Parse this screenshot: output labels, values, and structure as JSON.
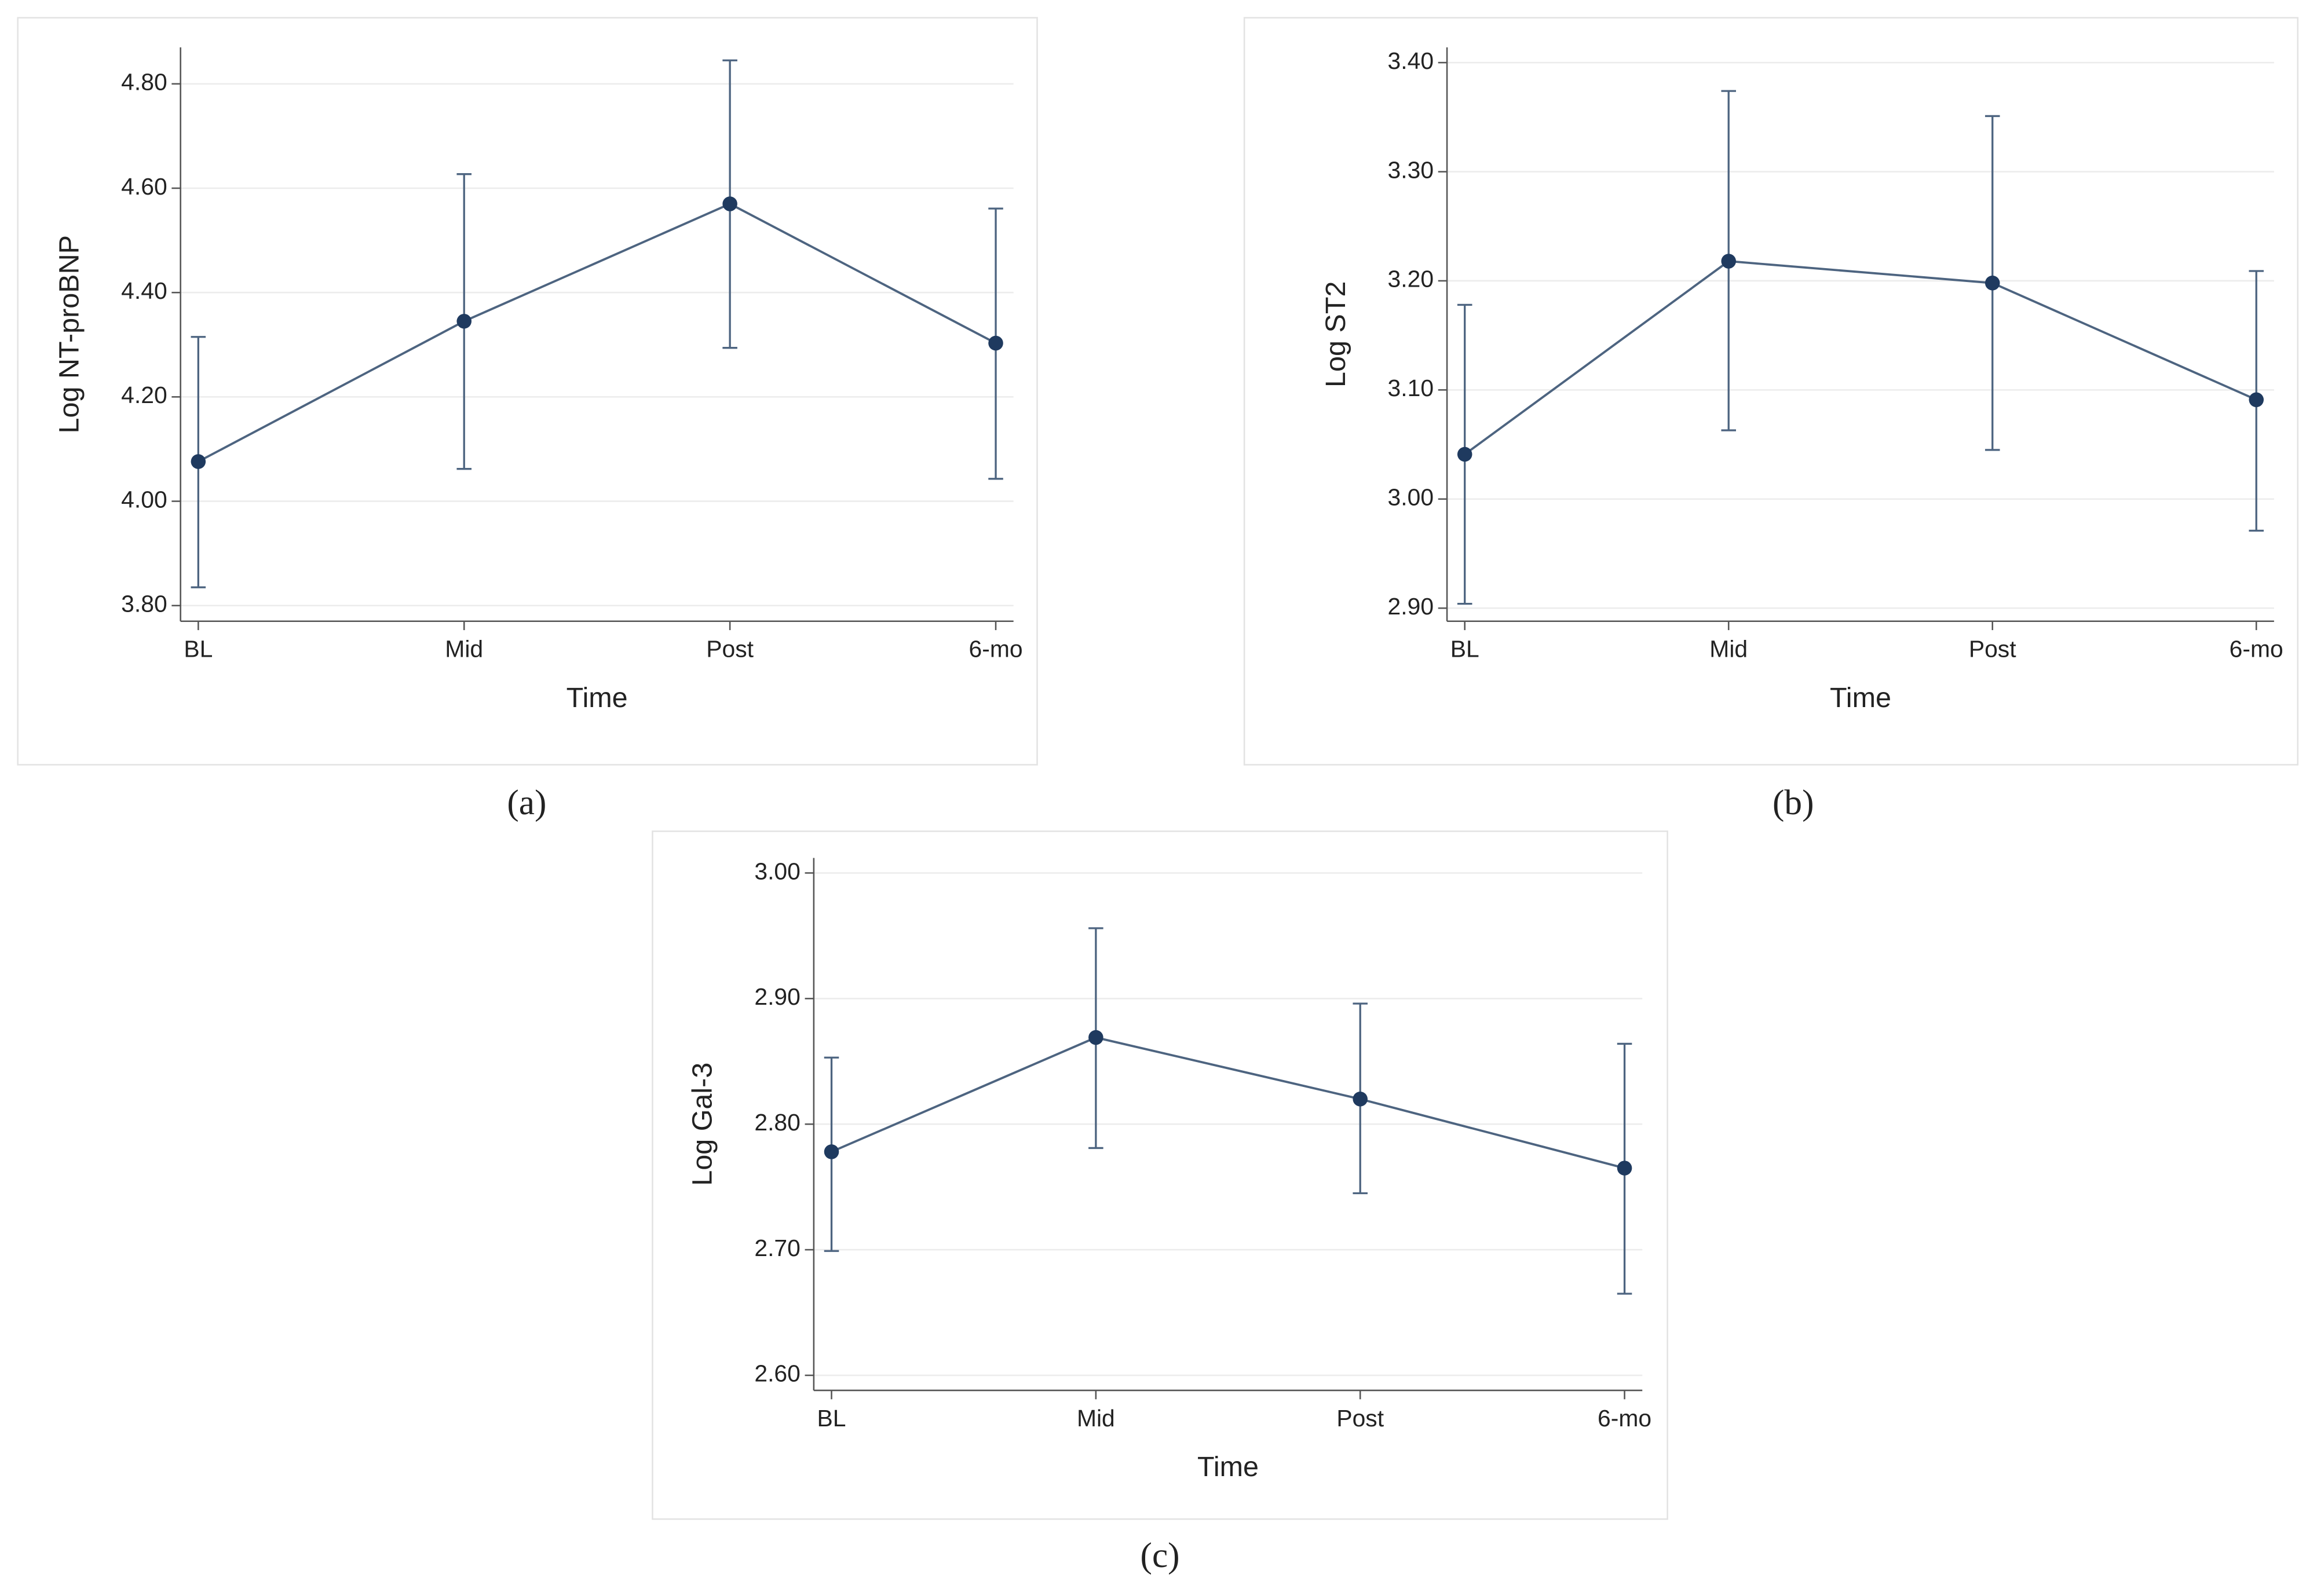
{
  "chart_data": [
    {
      "type": "line",
      "panel_label": "(a)",
      "xlabel": "Time",
      "ylabel": "Log NT-proBNP",
      "categories": [
        "BL",
        "Mid",
        "Post",
        "6-mo"
      ],
      "series": [
        {
          "color": "#4d6480",
          "marker_color": "#1f3a5f",
          "values": [
            4.076,
            4.345,
            4.57,
            4.303
          ],
          "ci_lower": [
            3.835,
            4.062,
            4.294,
            4.043
          ],
          "ci_upper": [
            4.315,
            4.627,
            4.845,
            4.561
          ]
        }
      ],
      "ylim": [
        3.77,
        4.87
      ],
      "yticks": [
        {
          "value": 3.8,
          "label": "3.80"
        },
        {
          "value": 4.0,
          "label": "4.00"
        },
        {
          "value": 4.2,
          "label": "4.20"
        },
        {
          "value": 4.4,
          "label": "4.40"
        },
        {
          "value": 4.6,
          "label": "4.60"
        },
        {
          "value": 4.8,
          "label": "4.80"
        }
      ],
      "grid": true
    },
    {
      "type": "line",
      "panel_label": "(b)",
      "xlabel": "Time",
      "ylabel": "Log ST2",
      "categories": [
        "BL",
        "Mid",
        "Post",
        "6-mo"
      ],
      "series": [
        {
          "color": "#4d6480",
          "marker_color": "#1f3a5f",
          "values": [
            3.041,
            3.218,
            3.198,
            3.091
          ],
          "ci_lower": [
            2.904,
            3.063,
            3.045,
            2.971
          ],
          "ci_upper": [
            3.178,
            3.374,
            3.351,
            3.209
          ]
        }
      ],
      "ylim": [
        2.888,
        3.414
      ],
      "yticks": [
        {
          "value": 2.9,
          "label": "2.90"
        },
        {
          "value": 3.0,
          "label": "3.00"
        },
        {
          "value": 3.1,
          "label": "3.10"
        },
        {
          "value": 3.2,
          "label": "3.20"
        },
        {
          "value": 3.3,
          "label": "3.30"
        },
        {
          "value": 3.4,
          "label": "3.40"
        }
      ],
      "grid": true
    },
    {
      "type": "line",
      "panel_label": "(c)",
      "xlabel": "Time",
      "ylabel": "Log Gal-3",
      "categories": [
        "BL",
        "Mid",
        "Post",
        "6-mo"
      ],
      "series": [
        {
          "color": "#4d6480",
          "marker_color": "#1f3a5f",
          "values": [
            2.778,
            2.869,
            2.82,
            2.765
          ],
          "ci_lower": [
            2.699,
            2.781,
            2.745,
            2.665
          ],
          "ci_upper": [
            2.853,
            2.956,
            2.896,
            2.864
          ]
        }
      ],
      "ylim": [
        2.588,
        3.012
      ],
      "yticks": [
        {
          "value": 2.6,
          "label": "2.60"
        },
        {
          "value": 2.7,
          "label": "2.70"
        },
        {
          "value": 2.8,
          "label": "2.80"
        },
        {
          "value": 2.9,
          "label": "2.90"
        },
        {
          "value": 3.0,
          "label": "3.00"
        }
      ],
      "grid": true
    }
  ]
}
